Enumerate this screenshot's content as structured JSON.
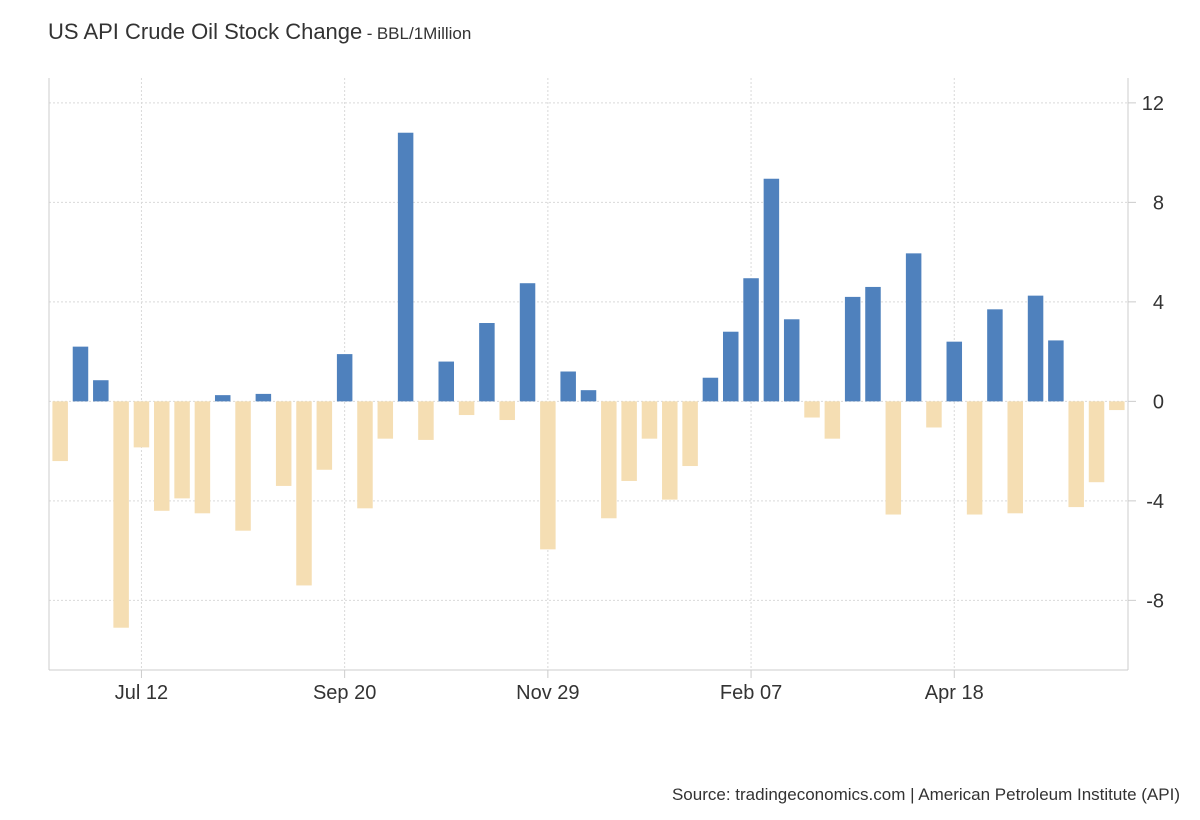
{
  "title": "US API Crude Oil Stock Change",
  "separator": "-",
  "subtitle": "BBL/1Million",
  "source": "Source: tradingeconomics.com | American Petroleum Institute (API)",
  "colors": {
    "positive": "#4f81bd",
    "negative": "#f5deb3",
    "grid": "#d9d9d9",
    "axis": "#cccccc"
  },
  "chart_data": {
    "type": "bar",
    "ylim": [
      -10.8,
      13
    ],
    "y_ticks": [
      12,
      8,
      4,
      0,
      -4,
      -8
    ],
    "y_tick_labels": [
      "12",
      "8",
      "4",
      "0",
      "-4",
      "-8"
    ],
    "y_axis_position": "right",
    "grid": true,
    "x_tick_labels": [
      "Jul 12",
      "Sep 20",
      "Nov 29",
      "Feb 07",
      "Apr 18"
    ],
    "x_tick_after_bar": [
      4.5,
      14.5,
      24.5,
      34.5,
      44.5
    ],
    "values": [
      -2.4,
      2.2,
      0.85,
      -9.1,
      -1.85,
      -4.4,
      -3.9,
      -4.5,
      0.25,
      -5.2,
      0.3,
      -3.4,
      -7.4,
      -2.75,
      1.9,
      -4.3,
      -1.5,
      10.8,
      -1.55,
      1.6,
      -0.55,
      3.15,
      -0.75,
      4.75,
      -5.95,
      1.2,
      0.45,
      -4.7,
      -3.2,
      -1.5,
      -3.95,
      -2.6,
      0.95,
      2.8,
      4.95,
      8.95,
      3.3,
      -0.65,
      -1.5,
      4.2,
      4.6,
      -4.55,
      5.95,
      -1.05,
      2.4,
      -4.55,
      3.7,
      -4.5,
      4.25,
      2.45,
      -4.25,
      -3.25,
      -0.35
    ]
  }
}
